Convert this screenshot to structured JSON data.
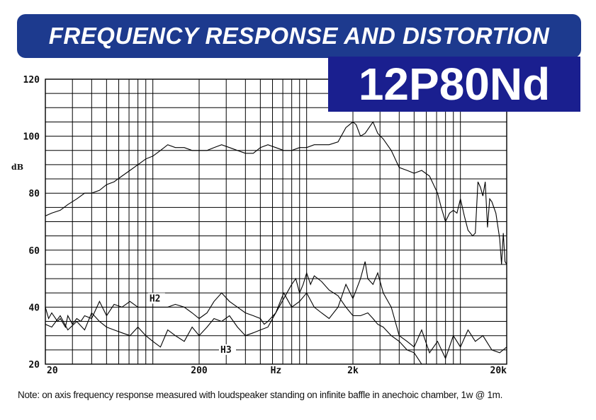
{
  "header": {
    "title": "FREQUENCY RESPONSE AND DISTORTION",
    "model": "12P80Nd",
    "banner_color": "#1d3a8e",
    "model_color": "#1a1f8f"
  },
  "note": "Note: on axis frequency response measured with loudspeaker standing on infinite baffle in anechoic chamber, 1w @ 1m.",
  "chart_data": {
    "type": "line",
    "x_scale": "log",
    "xlim": [
      20,
      20000
    ],
    "ylim": [
      20,
      120
    ],
    "grid": true,
    "ylabel": "dB",
    "xlabel": "Hz",
    "x_ticks": [
      {
        "value": 20,
        "label": "20"
      },
      {
        "value": 200,
        "label": "200"
      },
      {
        "value": 632,
        "label": "Hz"
      },
      {
        "value": 2000,
        "label": "2k"
      },
      {
        "value": 20000,
        "label": "20k"
      }
    ],
    "y_ticks": [
      {
        "value": 120,
        "label": "120"
      },
      {
        "value": 100,
        "label": "100"
      },
      {
        "value": 80,
        "label": "80"
      },
      {
        "value": 60,
        "label": "60"
      },
      {
        "value": 40,
        "label": "40"
      },
      {
        "value": 20,
        "label": "20"
      }
    ],
    "series": [
      {
        "points": [
          [
            20,
            72
          ],
          [
            22,
            73
          ],
          [
            25,
            74
          ],
          [
            28,
            76
          ],
          [
            32,
            78
          ],
          [
            36,
            80
          ],
          [
            40,
            80
          ],
          [
            45,
            81
          ],
          [
            50,
            83
          ],
          [
            56,
            84
          ],
          [
            63,
            86
          ],
          [
            71,
            88
          ],
          [
            80,
            90
          ],
          [
            90,
            92
          ],
          [
            100,
            93
          ],
          [
            112,
            95
          ],
          [
            125,
            97
          ],
          [
            140,
            96
          ],
          [
            160,
            96
          ],
          [
            180,
            95
          ],
          [
            200,
            95
          ],
          [
            225,
            95
          ],
          [
            250,
            96
          ],
          [
            280,
            97
          ],
          [
            315,
            96
          ],
          [
            355,
            95
          ],
          [
            400,
            94
          ],
          [
            450,
            94
          ],
          [
            500,
            96
          ],
          [
            560,
            97
          ],
          [
            630,
            96
          ],
          [
            710,
            95
          ],
          [
            800,
            95
          ],
          [
            900,
            96
          ],
          [
            1000,
            96
          ],
          [
            1120,
            97
          ],
          [
            1250,
            97
          ],
          [
            1400,
            97
          ],
          [
            1600,
            98
          ],
          [
            1800,
            103
          ],
          [
            2000,
            105
          ],
          [
            2100,
            104
          ],
          [
            2240,
            100
          ],
          [
            2400,
            101
          ],
          [
            2700,
            105
          ],
          [
            2900,
            101
          ],
          [
            3150,
            99
          ],
          [
            3550,
            95
          ],
          [
            4000,
            89
          ],
          [
            4500,
            88
          ],
          [
            5000,
            87
          ],
          [
            5600,
            88
          ],
          [
            6300,
            86
          ],
          [
            7100,
            80
          ],
          [
            7500,
            75
          ],
          [
            8000,
            70
          ],
          [
            8500,
            73
          ],
          [
            9000,
            74
          ],
          [
            9500,
            73
          ],
          [
            10000,
            78
          ],
          [
            10600,
            72
          ],
          [
            11200,
            67
          ],
          [
            12000,
            65
          ],
          [
            12500,
            66
          ],
          [
            13000,
            84
          ],
          [
            13500,
            82
          ],
          [
            14000,
            79
          ],
          [
            14500,
            84
          ],
          [
            15000,
            68
          ],
          [
            15500,
            78
          ],
          [
            16000,
            77
          ],
          [
            17000,
            73
          ],
          [
            18000,
            64
          ],
          [
            18500,
            55
          ],
          [
            19000,
            66
          ],
          [
            19500,
            56
          ],
          [
            20000,
            55
          ]
        ]
      },
      {
        "name": "H2",
        "points": [
          [
            20,
            40
          ],
          [
            21,
            36
          ],
          [
            22,
            38
          ],
          [
            24,
            35
          ],
          [
            25,
            36
          ],
          [
            27,
            33
          ],
          [
            28,
            37
          ],
          [
            30,
            34
          ],
          [
            32,
            36
          ],
          [
            34,
            35
          ],
          [
            36,
            37
          ],
          [
            40,
            36
          ],
          [
            45,
            42
          ],
          [
            50,
            37
          ],
          [
            56,
            41
          ],
          [
            63,
            40
          ],
          [
            71,
            42
          ],
          [
            80,
            40
          ],
          [
            90,
            40
          ],
          [
            100,
            40
          ],
          [
            112,
            40
          ],
          [
            125,
            40
          ],
          [
            140,
            41
          ],
          [
            160,
            40
          ],
          [
            180,
            38
          ],
          [
            200,
            36
          ],
          [
            225,
            38
          ],
          [
            250,
            42
          ],
          [
            280,
            45
          ],
          [
            315,
            42
          ],
          [
            355,
            40
          ],
          [
            400,
            38
          ],
          [
            450,
            37
          ],
          [
            500,
            36
          ],
          [
            530,
            34
          ],
          [
            560,
            35
          ],
          [
            630,
            38
          ],
          [
            710,
            43
          ],
          [
            800,
            48
          ],
          [
            850,
            50
          ],
          [
            900,
            45
          ],
          [
            950,
            48
          ],
          [
            1000,
            52
          ],
          [
            1060,
            48
          ],
          [
            1120,
            51
          ],
          [
            1250,
            49
          ],
          [
            1400,
            46
          ],
          [
            1600,
            44
          ],
          [
            1800,
            40
          ],
          [
            2000,
            37
          ],
          [
            2240,
            37
          ],
          [
            2500,
            38
          ],
          [
            2700,
            36
          ],
          [
            2900,
            34
          ],
          [
            3150,
            33
          ],
          [
            3550,
            30
          ],
          [
            4000,
            28
          ],
          [
            4500,
            25
          ],
          [
            5000,
            24
          ],
          [
            5600,
            20
          ]
        ]
      },
      {
        "name": "H3",
        "points": [
          [
            20,
            34
          ],
          [
            22,
            33
          ],
          [
            25,
            37
          ],
          [
            28,
            32
          ],
          [
            32,
            35
          ],
          [
            36,
            32
          ],
          [
            40,
            38
          ],
          [
            45,
            35
          ],
          [
            50,
            33
          ],
          [
            56,
            32
          ],
          [
            63,
            31
          ],
          [
            71,
            30
          ],
          [
            80,
            33
          ],
          [
            90,
            30
          ],
          [
            100,
            28
          ],
          [
            112,
            26
          ],
          [
            125,
            32
          ],
          [
            140,
            30
          ],
          [
            160,
            28
          ],
          [
            180,
            33
          ],
          [
            200,
            30
          ],
          [
            225,
            33
          ],
          [
            250,
            36
          ],
          [
            280,
            35
          ],
          [
            315,
            37
          ],
          [
            355,
            33
          ],
          [
            400,
            30
          ],
          [
            450,
            31
          ],
          [
            500,
            32
          ],
          [
            560,
            33
          ],
          [
            630,
            38
          ],
          [
            710,
            45
          ],
          [
            800,
            40
          ],
          [
            900,
            42
          ],
          [
            1000,
            45
          ],
          [
            1120,
            40
          ],
          [
            1250,
            38
          ],
          [
            1400,
            36
          ],
          [
            1600,
            40
          ],
          [
            1800,
            48
          ],
          [
            2000,
            43
          ],
          [
            2240,
            50
          ],
          [
            2400,
            56
          ],
          [
            2500,
            50
          ],
          [
            2700,
            48
          ],
          [
            2900,
            52
          ],
          [
            3150,
            45
          ],
          [
            3550,
            40
          ],
          [
            4000,
            30
          ],
          [
            4500,
            28
          ],
          [
            5000,
            26
          ],
          [
            5600,
            32
          ],
          [
            6300,
            24
          ],
          [
            7100,
            28
          ],
          [
            8000,
            22
          ],
          [
            9000,
            30
          ],
          [
            10000,
            26
          ],
          [
            11200,
            32
          ],
          [
            12500,
            28
          ],
          [
            14000,
            30
          ],
          [
            16000,
            25
          ],
          [
            18000,
            24
          ],
          [
            20000,
            26
          ]
        ]
      }
    ],
    "labels": [
      {
        "text": "H2",
        "x": 95,
        "y": 42
      },
      {
        "text": "H3",
        "x": 275,
        "y": 24
      }
    ]
  }
}
